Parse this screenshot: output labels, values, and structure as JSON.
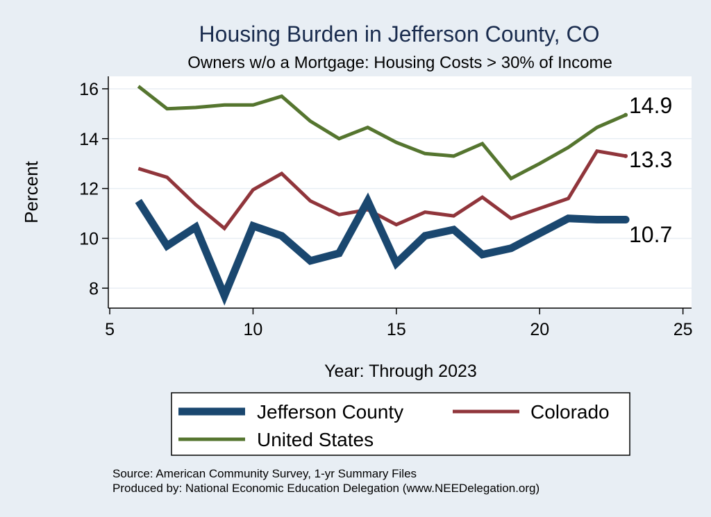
{
  "chart_data": {
    "type": "line",
    "title": "Housing Burden in Jefferson County, CO",
    "subtitle": "Owners w/o a Mortgage: Housing Costs > 30% of Income",
    "xlabel": "Year: Through 2023",
    "ylabel": "Percent",
    "xlim": [
      4.95,
      25.3
    ],
    "ylim": [
      7.2,
      16.5
    ],
    "xticks": [
      5,
      10,
      15,
      20,
      25
    ],
    "yticks": [
      8,
      10,
      12,
      14,
      16
    ],
    "grid": true,
    "legend_position": "bottom",
    "x": [
      6,
      7,
      8,
      9,
      10,
      11,
      12,
      13,
      14,
      15,
      16,
      17,
      18,
      19,
      20,
      21,
      22,
      23
    ],
    "series": [
      {
        "name": "Jefferson County",
        "color": "#1a476f",
        "weight": "thick",
        "values": [
          11.5,
          9.7,
          10.45,
          7.7,
          10.5,
          10.1,
          9.1,
          9.4,
          11.5,
          9.0,
          10.1,
          10.35,
          9.35,
          9.6,
          10.2,
          10.8,
          10.75,
          10.75
        ],
        "end_label": "10.7"
      },
      {
        "name": "Colorado",
        "color": "#90353b",
        "weight": "medium",
        "values": [
          12.8,
          12.45,
          11.35,
          10.4,
          11.95,
          12.6,
          11.5,
          10.95,
          11.15,
          10.55,
          11.05,
          10.9,
          11.65,
          10.8,
          11.2,
          11.6,
          13.5,
          13.3
        ],
        "end_label": "13.3"
      },
      {
        "name": "United States",
        "color": "#55752f",
        "weight": "medium",
        "values": [
          16.1,
          15.2,
          15.25,
          15.35,
          15.35,
          15.7,
          14.7,
          14.0,
          14.45,
          13.85,
          13.4,
          13.3,
          13.8,
          12.4,
          13.0,
          13.65,
          14.45,
          14.95
        ],
        "end_label": "14.9"
      }
    ],
    "legend_order": [
      "Jefferson County",
      "Colorado",
      "United States"
    ]
  },
  "footer": {
    "source": "Source: American Community Survey, 1-yr Summary Files",
    "producer": "Produced by: National Economic Education Delegation (www.NEEDelegation.org)"
  }
}
